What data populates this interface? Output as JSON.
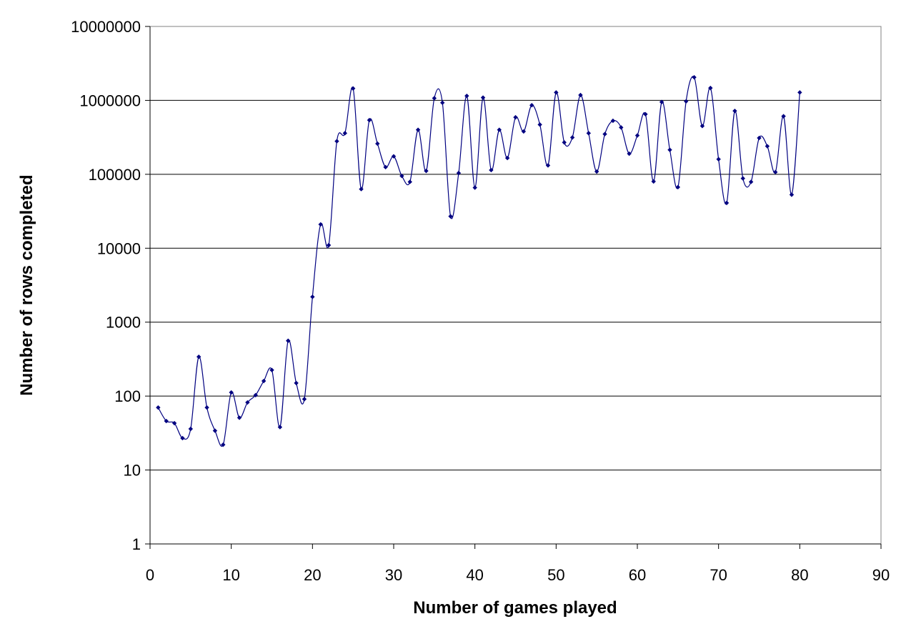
{
  "chart_data": {
    "type": "line",
    "title": "",
    "xlabel": "Number of games played",
    "ylabel": "Number of rows completed",
    "xlim": [
      0,
      90
    ],
    "ylim": [
      1,
      10000000
    ],
    "y_scale": "log",
    "x_ticks": [
      0,
      10,
      20,
      30,
      40,
      50,
      60,
      70,
      80,
      90
    ],
    "x_tick_labels": [
      "0",
      "10",
      "20",
      "30",
      "40",
      "50",
      "60",
      "70",
      "80",
      "90"
    ],
    "y_ticks": [
      1,
      10,
      100,
      1000,
      10000,
      100000,
      1000000,
      10000000
    ],
    "y_tick_labels": [
      "1",
      "10",
      "100",
      "1000",
      "10000",
      "100000",
      "1000000",
      "10000000"
    ],
    "grid": "horizontal",
    "legend": "none",
    "series": [
      {
        "color": "#000080",
        "marker": "diamond",
        "smooth": true,
        "x": [
          1,
          2,
          3,
          4,
          5,
          6,
          7,
          8,
          9,
          10,
          11,
          12,
          13,
          14,
          15,
          16,
          17,
          18,
          19,
          20,
          21,
          22,
          23,
          24,
          25,
          26,
          27,
          28,
          29,
          30,
          31,
          32,
          33,
          34,
          35,
          36,
          37,
          38,
          39,
          40,
          41,
          42,
          43,
          44,
          45,
          46,
          47,
          48,
          49,
          50,
          51,
          52,
          53,
          54,
          55,
          56,
          57,
          58,
          59,
          60,
          61,
          62,
          63,
          64,
          65,
          66,
          67,
          68,
          69,
          70,
          71,
          72,
          73,
          74,
          75,
          76,
          77,
          78,
          79,
          80
        ],
        "y": [
          70,
          46,
          43,
          27,
          36,
          340,
          70,
          34,
          22,
          112,
          51,
          82,
          103,
          160,
          225,
          38,
          560,
          150,
          91,
          2200,
          21000,
          11000,
          280000,
          360000,
          1450000,
          63000,
          540000,
          260000,
          125000,
          175000,
          95000,
          79000,
          400000,
          111000,
          1070000,
          930000,
          27000,
          104000,
          1150000,
          66000,
          1090000,
          114000,
          400000,
          166000,
          590000,
          380000,
          860000,
          470000,
          132000,
          1280000,
          270000,
          315000,
          1180000,
          360000,
          109000,
          350000,
          530000,
          430000,
          190000,
          335000,
          650000,
          80000,
          950000,
          214000,
          67000,
          970000,
          2050000,
          450000,
          1470000,
          160000,
          41000,
          720000,
          88000,
          79000,
          310000,
          240000,
          107000,
          610000,
          53000,
          1280000
        ]
      }
    ]
  }
}
